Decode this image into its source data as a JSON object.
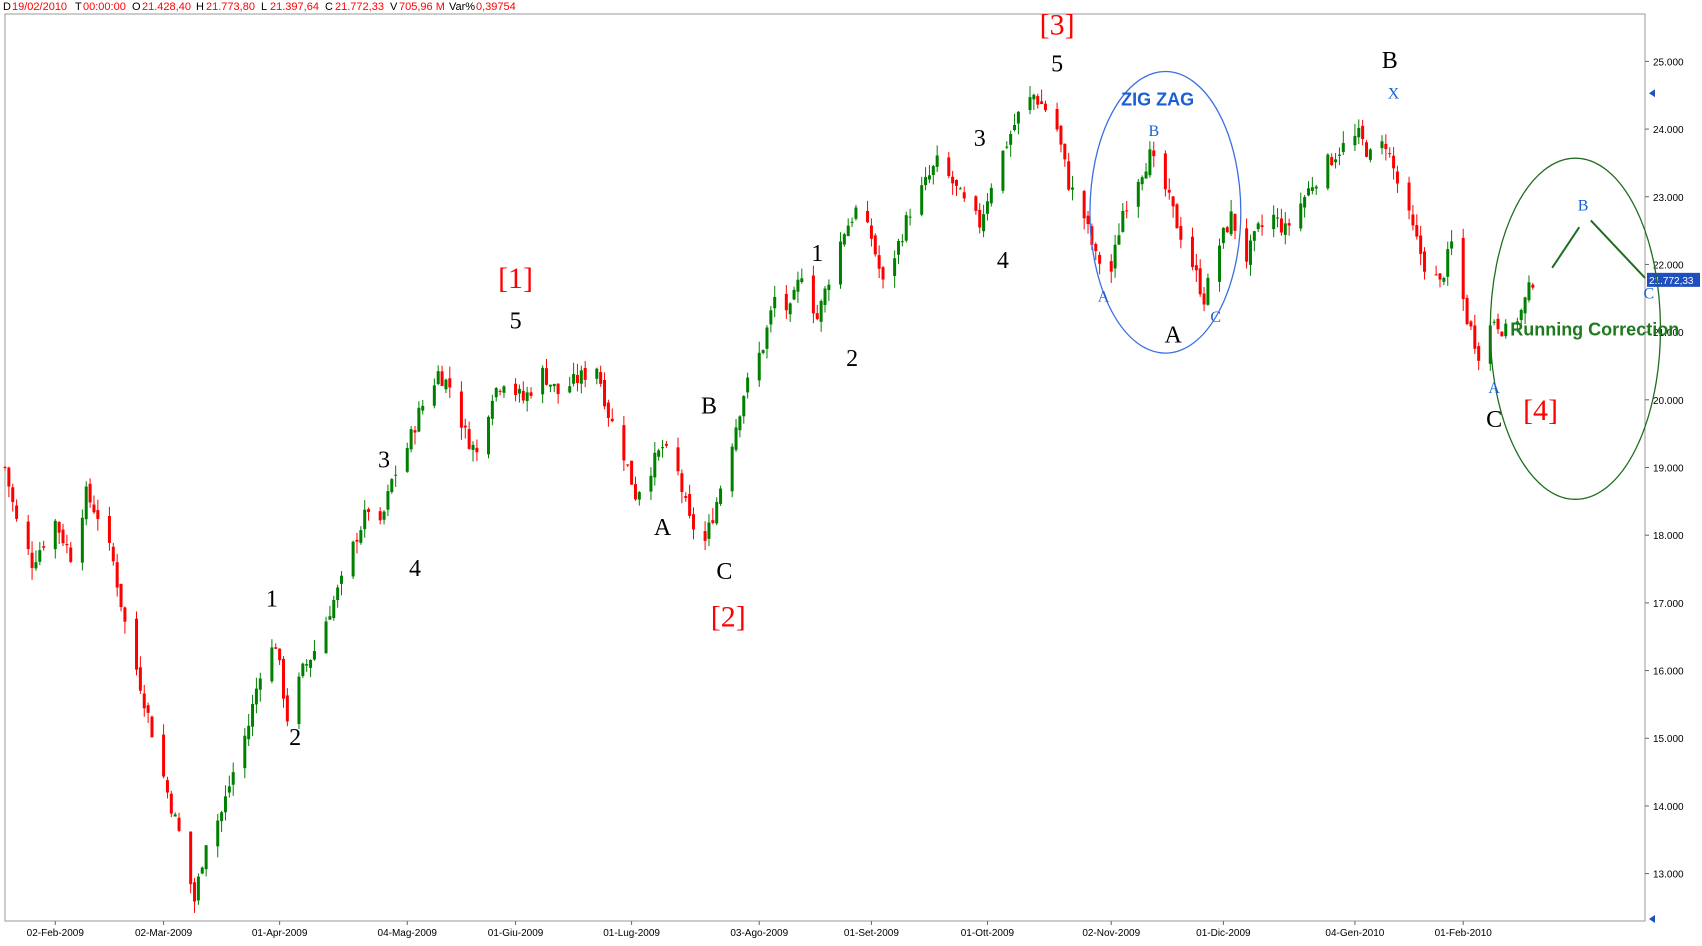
{
  "header": {
    "date_label": "D",
    "date_value": "19/02/2010",
    "time_label": "T",
    "time_value": "00:00:00",
    "open_label": "O",
    "open_value": "21.428,40",
    "high_label": "H",
    "high_value": "21.773,80",
    "low_label": "L",
    "low_value": "21.397,64",
    "close_label": "C",
    "close_value": "21.772,33",
    "volume_label": "V",
    "volume_value": "705,96 M",
    "var_label": "Var%",
    "var_value": "0,39754"
  },
  "colors": {
    "up": "#008000",
    "down": "#ff0000",
    "wave_red": "#ff0000",
    "wave_black": "#000000",
    "wave_blue": "#1a5fd6",
    "zigzag_ellipse": "#3b6fe0",
    "running_ellipse": "#1f6d1f",
    "running_text": "#1f7a1f",
    "last_price_bg": "#1f4fbf"
  },
  "chart_data": {
    "type": "candlestick",
    "y_axis": {
      "min": 12300,
      "max": 25700,
      "position": "right",
      "ticks": [
        "13.000",
        "14.000",
        "15.000",
        "16.000",
        "17.000",
        "18.000",
        "19.000",
        "20.000",
        "21.000",
        "22.000",
        "23.000",
        "24.000",
        "25.000"
      ]
    },
    "last_price_label": "21.772,33",
    "x_axis": {
      "start": "2009-01-20",
      "end": "2010-03-20",
      "ticks": [
        {
          "date": "2009-02-02",
          "label": "02-Feb-2009"
        },
        {
          "date": "2009-03-02",
          "label": "02-Mar-2009"
        },
        {
          "date": "2009-04-01",
          "label": "01-Apr-2009"
        },
        {
          "date": "2009-05-04",
          "label": "04-Mag-2009"
        },
        {
          "date": "2009-06-01",
          "label": "01-Giu-2009"
        },
        {
          "date": "2009-07-01",
          "label": "01-Lug-2009"
        },
        {
          "date": "2009-08-03",
          "label": "03-Ago-2009"
        },
        {
          "date": "2009-09-01",
          "label": "01-Set-2009"
        },
        {
          "date": "2009-10-01",
          "label": "01-Ott-2009"
        },
        {
          "date": "2009-11-02",
          "label": "02-Nov-2009"
        },
        {
          "date": "2009-12-01",
          "label": "01-Dic-2009"
        },
        {
          "date": "2010-01-04",
          "label": "04-Gen-2010"
        },
        {
          "date": "2010-02-01",
          "label": "01-Feb-2010"
        }
      ]
    },
    "price_path": [
      [
        "2009-01-20",
        19000
      ],
      [
        "2009-01-23",
        18200
      ],
      [
        "2009-01-27",
        17600
      ],
      [
        "2009-02-02",
        18200
      ],
      [
        "2009-02-06",
        17700
      ],
      [
        "2009-02-10",
        18600
      ],
      [
        "2009-02-13",
        18300
      ],
      [
        "2009-02-17",
        17600
      ],
      [
        "2009-02-20",
        16700
      ],
      [
        "2009-02-24",
        15800
      ],
      [
        "2009-02-27",
        15100
      ],
      [
        "2009-03-03",
        14200
      ],
      [
        "2009-03-06",
        13600
      ],
      [
        "2009-03-10",
        12600
      ],
      [
        "2009-03-13",
        13500
      ],
      [
        "2009-03-17",
        13900
      ],
      [
        "2009-03-20",
        14500
      ],
      [
        "2009-03-24",
        15200
      ],
      [
        "2009-03-27",
        16000
      ],
      [
        "2009-03-31",
        16400
      ],
      [
        "2009-04-03",
        15300
      ],
      [
        "2009-04-07",
        16000
      ],
      [
        "2009-04-10",
        16300
      ],
      [
        "2009-04-14",
        16900
      ],
      [
        "2009-04-17",
        17300
      ],
      [
        "2009-04-21",
        18000
      ],
      [
        "2009-04-24",
        18400
      ],
      [
        "2009-04-27",
        18100
      ],
      [
        "2009-04-30",
        18800
      ],
      [
        "2009-05-04",
        19300
      ],
      [
        "2009-05-07",
        19800
      ],
      [
        "2009-05-12",
        20400
      ],
      [
        "2009-05-15",
        20200
      ],
      [
        "2009-05-19",
        19500
      ],
      [
        "2009-05-22",
        19200
      ],
      [
        "2009-05-26",
        20100
      ],
      [
        "2009-05-29",
        20300
      ],
      [
        "2009-06-03",
        20000
      ],
      [
        "2009-06-08",
        20400
      ],
      [
        "2009-06-12",
        20100
      ],
      [
        "2009-06-17",
        20300
      ],
      [
        "2009-06-22",
        20500
      ],
      [
        "2009-06-25",
        19800
      ],
      [
        "2009-06-29",
        19200
      ],
      [
        "2009-07-02",
        18600
      ],
      [
        "2009-07-06",
        19000
      ],
      [
        "2009-07-09",
        19300
      ],
      [
        "2009-07-13",
        18900
      ],
      [
        "2009-07-16",
        18200
      ],
      [
        "2009-07-20",
        17900
      ],
      [
        "2009-07-23",
        18500
      ],
      [
        "2009-07-27",
        19400
      ],
      [
        "2009-07-30",
        20100
      ],
      [
        "2009-08-04",
        20800
      ],
      [
        "2009-08-07",
        21500
      ],
      [
        "2009-08-11",
        21300
      ],
      [
        "2009-08-14",
        21900
      ],
      [
        "2009-08-18",
        21200
      ],
      [
        "2009-08-21",
        21800
      ],
      [
        "2009-08-25",
        22500
      ],
      [
        "2009-08-28",
        22800
      ],
      [
        "2009-09-01",
        22400
      ],
      [
        "2009-09-04",
        21700
      ],
      [
        "2009-09-08",
        22300
      ],
      [
        "2009-09-11",
        22800
      ],
      [
        "2009-09-15",
        23200
      ],
      [
        "2009-09-18",
        23500
      ],
      [
        "2009-09-22",
        23200
      ],
      [
        "2009-09-25",
        22900
      ],
      [
        "2009-09-29",
        22600
      ],
      [
        "2009-10-02",
        23200
      ],
      [
        "2009-10-06",
        23800
      ],
      [
        "2009-10-09",
        24200
      ],
      [
        "2009-10-13",
        24500
      ],
      [
        "2009-10-16",
        24300
      ],
      [
        "2009-10-19",
        24000
      ],
      [
        "2009-10-22",
        23200
      ],
      [
        "2009-10-26",
        22700
      ],
      [
        "2009-10-29",
        22100
      ],
      [
        "2009-11-02",
        21900
      ],
      [
        "2009-11-05",
        22800
      ],
      [
        "2009-11-09",
        23300
      ],
      [
        "2009-11-12",
        23600
      ],
      [
        "2009-11-16",
        23100
      ],
      [
        "2009-11-19",
        22600
      ],
      [
        "2009-11-23",
        22000
      ],
      [
        "2009-11-26",
        21500
      ],
      [
        "2009-11-30",
        22300
      ],
      [
        "2009-12-03",
        22700
      ],
      [
        "2009-12-07",
        22100
      ],
      [
        "2009-12-10",
        22500
      ],
      [
        "2009-12-14",
        22700
      ],
      [
        "2009-12-17",
        22500
      ],
      [
        "2009-12-21",
        22900
      ],
      [
        "2009-12-24",
        23200
      ],
      [
        "2009-12-28",
        23500
      ],
      [
        "2009-12-31",
        23700
      ],
      [
        "2010-01-05",
        23900
      ],
      [
        "2010-01-08",
        23600
      ],
      [
        "2010-01-12",
        23800
      ],
      [
        "2010-01-15",
        23200
      ],
      [
        "2010-01-19",
        22500
      ],
      [
        "2010-01-22",
        22000
      ],
      [
        "2010-01-26",
        21700
      ],
      [
        "2010-01-29",
        22300
      ],
      [
        "2010-02-02",
        21200
      ],
      [
        "2010-02-05",
        20700
      ],
      [
        "2010-02-09",
        21200
      ],
      [
        "2010-02-12",
        21000
      ],
      [
        "2010-02-16",
        21300
      ],
      [
        "2010-02-19",
        21772
      ]
    ],
    "wave_labels": [
      {
        "text": "[1]",
        "date": "2009-06-01",
        "price": 21650,
        "color": "red",
        "size": "large"
      },
      {
        "text": "5",
        "date": "2009-06-01",
        "price": 21050,
        "color": "black",
        "size": "medium"
      },
      {
        "text": "1",
        "date": "2009-03-30",
        "price": 16950,
        "color": "black",
        "size": "medium"
      },
      {
        "text": "2",
        "date": "2009-04-05",
        "price": 14900,
        "color": "black",
        "size": "medium"
      },
      {
        "text": "3",
        "date": "2009-04-28",
        "price": 19000,
        "color": "black",
        "size": "medium"
      },
      {
        "text": "4",
        "date": "2009-05-06",
        "price": 17400,
        "color": "black",
        "size": "medium"
      },
      {
        "text": "A",
        "date": "2009-07-09",
        "price": 18000,
        "color": "black",
        "size": "medium"
      },
      {
        "text": "B",
        "date": "2009-07-21",
        "price": 19800,
        "color": "black",
        "size": "medium"
      },
      {
        "text": "C",
        "date": "2009-07-25",
        "price": 17350,
        "color": "black",
        "size": "medium"
      },
      {
        "text": "[2]",
        "date": "2009-07-26",
        "price": 16650,
        "color": "red",
        "size": "large"
      },
      {
        "text": "1",
        "date": "2009-08-18",
        "price": 22050,
        "color": "black",
        "size": "medium"
      },
      {
        "text": "2",
        "date": "2009-08-27",
        "price": 20500,
        "color": "black",
        "size": "medium"
      },
      {
        "text": "3",
        "date": "2009-09-29",
        "price": 23750,
        "color": "black",
        "size": "medium"
      },
      {
        "text": "4",
        "date": "2009-10-05",
        "price": 21950,
        "color": "black",
        "size": "medium"
      },
      {
        "text": "5",
        "date": "2009-10-19",
        "price": 24850,
        "color": "black",
        "size": "medium"
      },
      {
        "text": "[3]",
        "date": "2009-10-19",
        "price": 25400,
        "color": "red",
        "size": "large"
      },
      {
        "text": "ZIG ZAG",
        "date": "2009-11-14",
        "price": 24350,
        "color": "blue",
        "size": "bold"
      },
      {
        "text": "B",
        "date": "2009-11-13",
        "price": 23900,
        "color": "blue",
        "size": "small"
      },
      {
        "text": "A",
        "date": "2009-10-31",
        "price": 21450,
        "color": "blue",
        "size": "small"
      },
      {
        "text": "C",
        "date": "2009-11-29",
        "price": 21150,
        "color": "blue",
        "size": "small"
      },
      {
        "text": "A",
        "date": "2009-11-18",
        "price": 20850,
        "color": "black",
        "size": "medium"
      },
      {
        "text": "B",
        "date": "2010-01-13",
        "price": 24900,
        "color": "black",
        "size": "medium"
      },
      {
        "text": "X",
        "date": "2010-01-14",
        "price": 24450,
        "color": "blue",
        "size": "small"
      },
      {
        "text": "A",
        "date": "2010-02-09",
        "price": 20100,
        "color": "blue",
        "size": "small"
      },
      {
        "text": "C",
        "date": "2010-02-09",
        "price": 19600,
        "color": "black",
        "size": "medium"
      },
      {
        "text": "[4]",
        "date": "2010-02-21",
        "price": 19700,
        "color": "red",
        "size": "large"
      },
      {
        "text": "B",
        "date": "2010-03-04",
        "price": 22800,
        "color": "blue",
        "size": "small"
      },
      {
        "text": "C",
        "date": "2010-03-21",
        "price": 21500,
        "color": "blue",
        "size": "small"
      },
      {
        "text": "Running Correction",
        "date": "2010-03-07",
        "price": 20950,
        "color": "green",
        "size": "bold"
      }
    ],
    "projection_lines": [
      [
        [
          "2010-02-24",
          21950
        ],
        [
          "2010-03-03",
          22550
        ]
      ],
      [
        [
          "2010-03-06",
          22650
        ],
        [
          "2010-03-20",
          21800
        ]
      ]
    ],
    "ellipses": [
      {
        "name": "zigzag",
        "center_date": "2009-11-16",
        "center_price": 22770,
        "radius_days": 19.5,
        "radius_price": 2080,
        "color": "blue"
      },
      {
        "name": "running",
        "center_date": "2010-03-02",
        "center_price": 21050,
        "radius_days": 22,
        "radius_price": 2520,
        "color": "green"
      }
    ]
  }
}
